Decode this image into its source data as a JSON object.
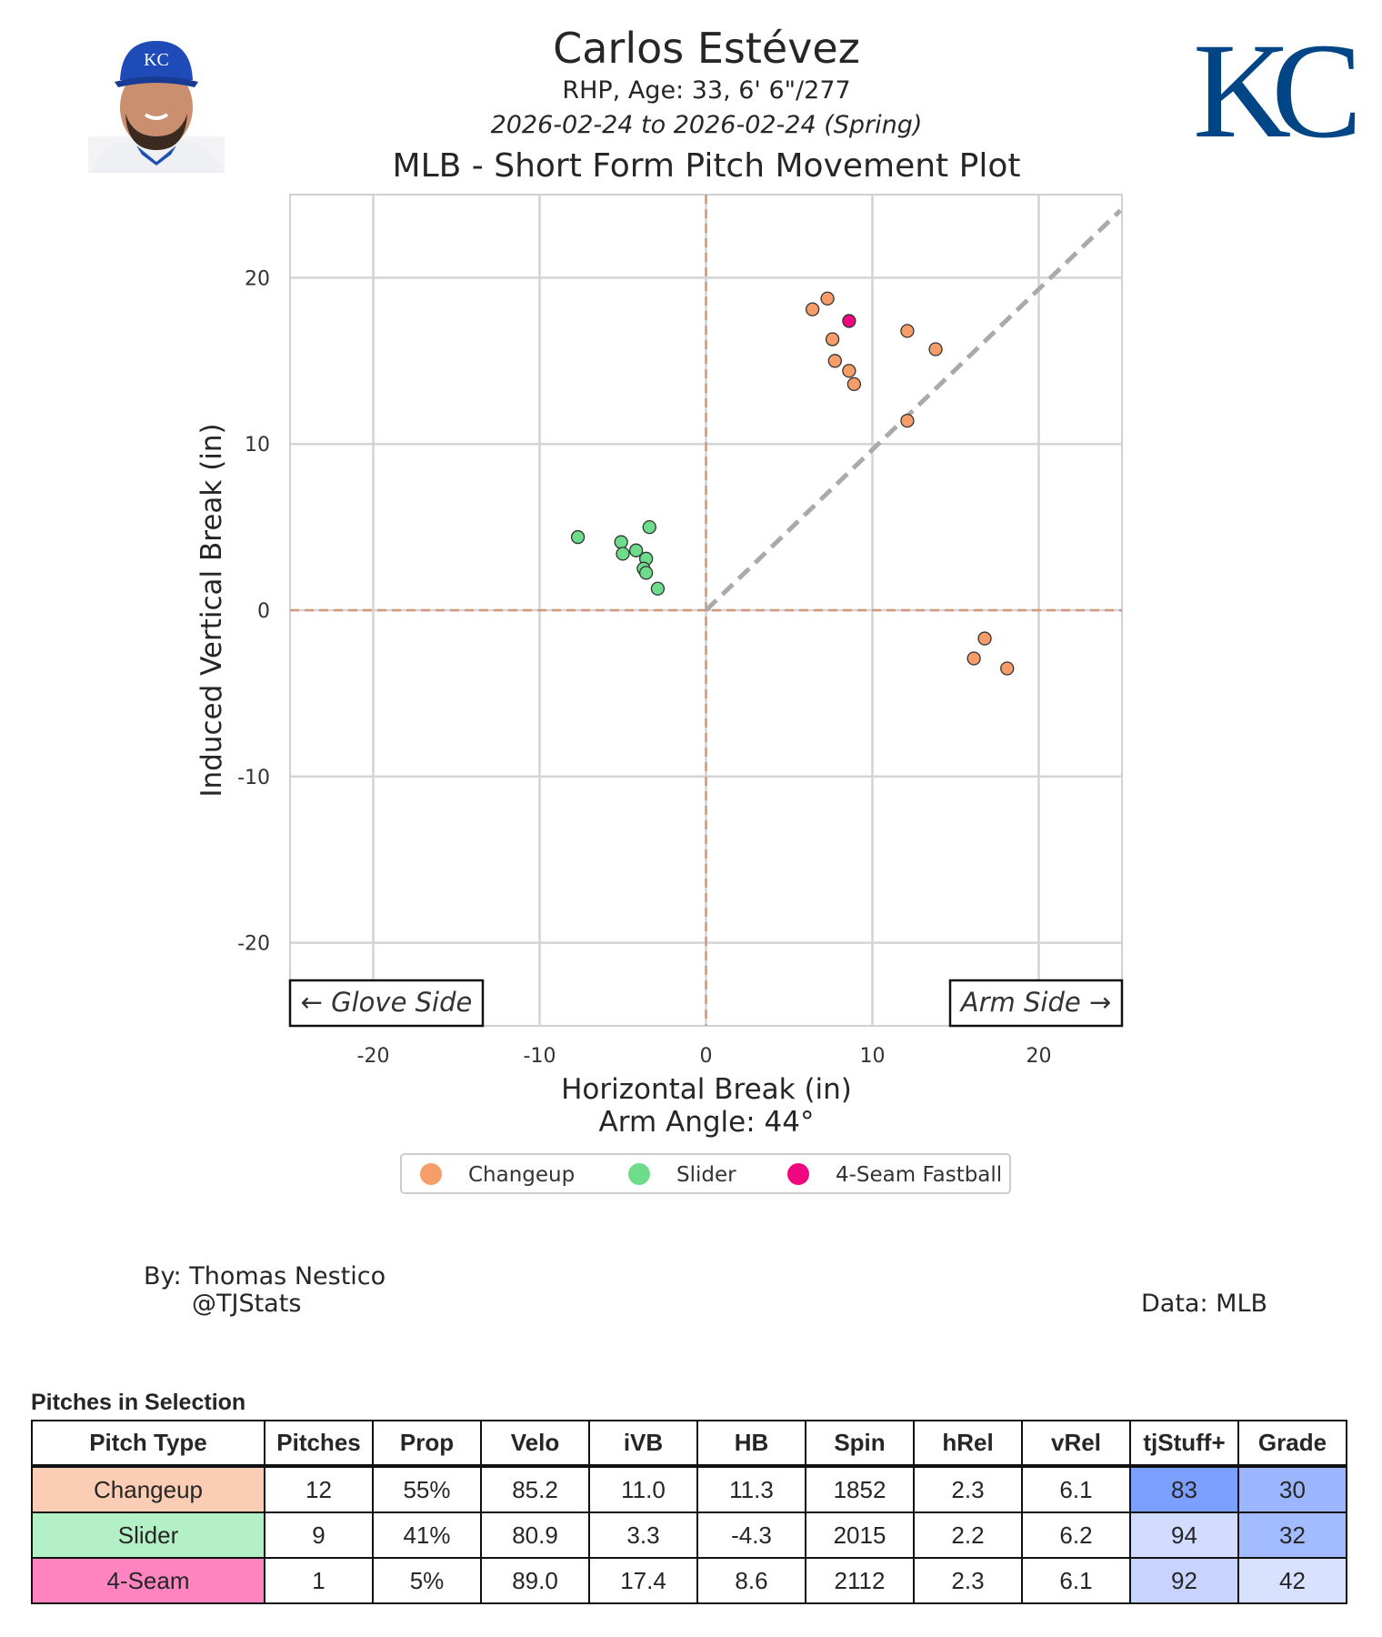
{
  "header": {
    "player_name": "Carlos Estévez",
    "bio": "RHP, Age: 33, 6' 6\"/277",
    "date_range": "2026-02-24 to 2026-02-24 (Spring)",
    "plot_title": "MLB - Short Form Pitch Movement Plot",
    "team_logo": "KC",
    "team_color": "#004687"
  },
  "chart_data": {
    "type": "scatter",
    "xlabel": "Horizontal Break (in)",
    "ylabel": "Induced Vertical Break (in)",
    "subtitle_below_xlabel": "Arm Angle: 44°",
    "arm_angle_deg": 44,
    "xlim": [
      -25,
      25
    ],
    "ylim": [
      -25,
      25
    ],
    "xticks": [
      -20,
      -10,
      0,
      10,
      20
    ],
    "yticks": [
      -20,
      -10,
      0,
      10,
      20
    ],
    "grid": true,
    "legend_placement": "bottom-center",
    "annotations": {
      "left": "← Glove Side",
      "right": "Arm Side →"
    },
    "series": [
      {
        "name": "Changeup",
        "color": "#f79d6a",
        "x": [
          6.4,
          7.3,
          7.6,
          7.75,
          8.6,
          8.9,
          12.1,
          13.8,
          12.1,
          16.75,
          16.1,
          18.1
        ],
        "y": [
          18.1,
          18.75,
          16.3,
          15.0,
          14.4,
          13.6,
          16.8,
          15.7,
          11.4,
          -1.7,
          -2.9,
          -3.5
        ]
      },
      {
        "name": "Slider",
        "color": "#6ddc8b",
        "x": [
          -7.7,
          -5.1,
          -5.0,
          -4.2,
          -3.4,
          -3.6,
          -3.75,
          -3.6,
          -2.9
        ],
        "y": [
          4.4,
          4.1,
          3.4,
          3.6,
          5.0,
          3.1,
          2.5,
          2.25,
          1.3
        ]
      },
      {
        "name": "4-Seam Fastball",
        "color": "#f0077f",
        "x": [
          8.6
        ],
        "y": [
          17.4
        ]
      }
    ]
  },
  "credits": {
    "by": "By: Thomas Nestico",
    "handle": "@TJStats",
    "data": "Data: MLB"
  },
  "table": {
    "title": "Pitches in Selection",
    "columns": [
      "Pitch Type",
      "Pitches",
      "Prop",
      "Velo",
      "iVB",
      "HB",
      "Spin",
      "hRel",
      "vRel",
      "tjStuff+",
      "Grade"
    ],
    "rows": [
      {
        "cells": [
          "Changeup",
          "12",
          "55%",
          "85.2",
          "11.0",
          "11.3",
          "1852",
          "2.3",
          "6.1",
          "83",
          "30"
        ],
        "type_color": "#fbcdb4",
        "stuff_color": "#7ba0ff",
        "grade_color": "#9bb6ff"
      },
      {
        "cells": [
          "Slider",
          "9",
          "41%",
          "80.9",
          "3.3",
          "-4.3",
          "2015",
          "2.2",
          "6.2",
          "94",
          "32"
        ],
        "type_color": "#b4f0c6",
        "stuff_color": "#d2dcff",
        "grade_color": "#a3bcff"
      },
      {
        "cells": [
          "4-Seam",
          "1",
          "5%",
          "89.0",
          "17.4",
          "8.6",
          "2112",
          "2.3",
          "6.1",
          "92",
          "42"
        ],
        "type_color": "#ff84c0",
        "stuff_color": "#c6d4ff",
        "grade_color": "#d8e2ff"
      }
    ]
  }
}
